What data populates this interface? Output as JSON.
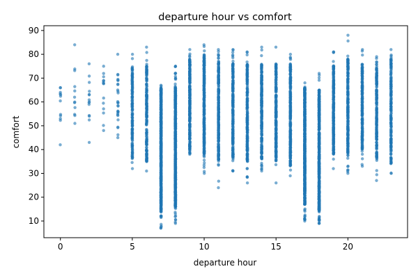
{
  "chart_data": {
    "type": "scatter",
    "title": "departure hour vs comfort",
    "xlabel": "departure hour",
    "ylabel": "comfort",
    "xlim": [
      -1.15,
      24.15
    ],
    "ylim": [
      3,
      92
    ],
    "xticks": [
      0,
      5,
      10,
      15,
      20
    ],
    "yticks": [
      10,
      20,
      30,
      40,
      50,
      60,
      70,
      80,
      90
    ],
    "grid": false,
    "legend": "none",
    "point_color": "#1f77b4",
    "series": [
      {
        "hours": [
          {
            "x": 0,
            "min": 42,
            "max": 66,
            "dense_min": 49,
            "dense_max": 66,
            "count": 10
          },
          {
            "x": 1,
            "min": 51,
            "max": 84,
            "dense_min": 52,
            "dense_max": 77,
            "count": 10
          },
          {
            "x": 2,
            "min": 43,
            "max": 76,
            "dense_min": 47,
            "dense_max": 72,
            "count": 12
          },
          {
            "x": 3,
            "min": 48,
            "max": 75,
            "dense_min": 50,
            "dense_max": 72,
            "count": 12
          },
          {
            "x": 4,
            "min": 45,
            "max": 80,
            "dense_min": 46,
            "dense_max": 72,
            "count": 25
          },
          {
            "x": 5,
            "min": 32,
            "max": 80,
            "dense_min": 36,
            "dense_max": 75,
            "count": 150
          },
          {
            "x": 6,
            "min": 31,
            "max": 83,
            "dense_min": 35,
            "dense_max": 76,
            "count": 200
          },
          {
            "x": 7,
            "min": 7,
            "max": 67,
            "dense_min": 14,
            "dense_max": 66,
            "count": 600
          },
          {
            "x": 8,
            "min": 9,
            "max": 75,
            "dense_min": 16,
            "dense_max": 66,
            "count": 600
          },
          {
            "x": 9,
            "min": 38,
            "max": 82,
            "dense_min": 40,
            "dense_max": 78,
            "count": 300
          },
          {
            "x": 10,
            "min": 30,
            "max": 84,
            "dense_min": 38,
            "dense_max": 80,
            "count": 300
          },
          {
            "x": 11,
            "min": 24,
            "max": 82,
            "dense_min": 35,
            "dense_max": 77,
            "count": 250
          },
          {
            "x": 12,
            "min": 31,
            "max": 82,
            "dense_min": 36,
            "dense_max": 76,
            "count": 250
          },
          {
            "x": 13,
            "min": 26,
            "max": 81,
            "dense_min": 35,
            "dense_max": 76,
            "count": 250
          },
          {
            "x": 14,
            "min": 31,
            "max": 83,
            "dense_min": 36,
            "dense_max": 76,
            "count": 250
          },
          {
            "x": 15,
            "min": 26,
            "max": 83,
            "dense_min": 35,
            "dense_max": 76,
            "count": 250
          },
          {
            "x": 16,
            "min": 29,
            "max": 80,
            "dense_min": 33,
            "dense_max": 76,
            "count": 300
          },
          {
            "x": 17,
            "min": 10,
            "max": 68,
            "dense_min": 17,
            "dense_max": 66,
            "count": 600
          },
          {
            "x": 18,
            "min": 9,
            "max": 72,
            "dense_min": 14,
            "dense_max": 65,
            "count": 600
          },
          {
            "x": 19,
            "min": 32,
            "max": 81,
            "dense_min": 38,
            "dense_max": 76,
            "count": 250
          },
          {
            "x": 20,
            "min": 30,
            "max": 88,
            "dense_min": 38,
            "dense_max": 78,
            "count": 250
          },
          {
            "x": 21,
            "min": 33,
            "max": 82,
            "dense_min": 40,
            "dense_max": 76,
            "count": 200
          },
          {
            "x": 22,
            "min": 27,
            "max": 79,
            "dense_min": 36,
            "dense_max": 76,
            "count": 200
          },
          {
            "x": 23,
            "min": 30,
            "max": 82,
            "dense_min": 34,
            "dense_max": 78,
            "count": 200
          }
        ]
      }
    ]
  }
}
